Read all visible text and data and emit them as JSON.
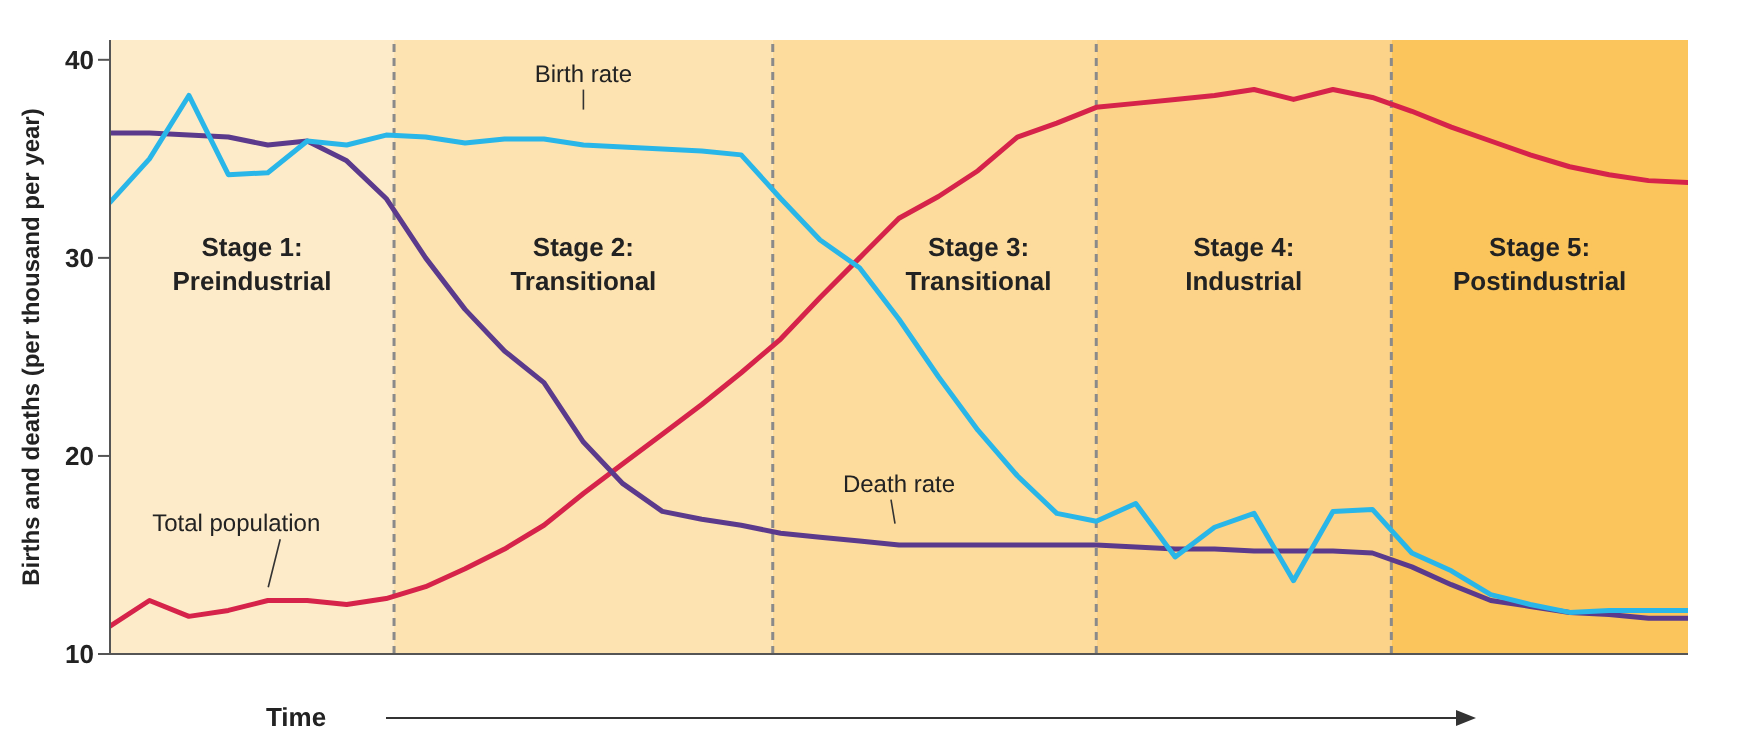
{
  "chart_data": {
    "type": "line",
    "ylabel": "Births and deaths (per thousand per year)",
    "xlabel": "Time",
    "categories": [
      null,
      null,
      null,
      null,
      null,
      null,
      null,
      null,
      null,
      null,
      null,
      null,
      null,
      null,
      null,
      null,
      null,
      null,
      null,
      null,
      null,
      null,
      null,
      null,
      null,
      null,
      null,
      null,
      null,
      null,
      null,
      null,
      null,
      null,
      null,
      null,
      null,
      null,
      null,
      null,
      null
    ],
    "ylim": [
      10,
      41
    ],
    "yticks": [
      10,
      20,
      30,
      40
    ],
    "tick_labels": "y",
    "grid": false,
    "legend": false,
    "marker": "none",
    "line_style": "solid",
    "series": [
      {
        "name": "Birth rate",
        "color": "#29b6e8",
        "values": [
          32.8,
          35.0,
          38.2,
          34.2,
          34.3,
          35.9,
          35.7,
          36.2,
          36.1,
          35.8,
          36.0,
          36.0,
          35.7,
          35.6,
          35.5,
          35.4,
          35.2,
          33.0,
          30.9,
          29.5,
          26.9,
          24.0,
          21.3,
          19.0,
          17.1,
          16.7,
          17.6,
          14.9,
          16.4,
          17.1,
          13.7,
          17.2,
          17.3,
          15.1,
          14.2,
          13.0,
          12.5,
          12.1,
          12.2,
          12.2,
          12.2
        ]
      },
      {
        "name": "Death rate",
        "color": "#5b3a8c",
        "values": [
          36.3,
          36.3,
          36.2,
          36.1,
          35.7,
          35.9,
          34.9,
          33.0,
          30.0,
          27.4,
          25.3,
          23.7,
          20.7,
          18.6,
          17.2,
          16.8,
          16.5,
          16.1,
          15.9,
          15.7,
          15.5,
          15.5,
          15.5,
          15.5,
          15.5,
          15.5,
          15.4,
          15.3,
          15.3,
          15.2,
          15.2,
          15.2,
          15.1,
          14.4,
          13.5,
          12.7,
          12.4,
          12.1,
          12.0,
          11.8,
          11.8
        ]
      },
      {
        "name": "Total population",
        "color": "#d6234a",
        "values": [
          11.4,
          12.7,
          11.9,
          12.2,
          12.7,
          12.7,
          12.5,
          12.8,
          13.4,
          14.3,
          15.3,
          16.5,
          18.1,
          19.6,
          21.1,
          22.6,
          24.2,
          25.9,
          28.0,
          30.0,
          32.0,
          33.1,
          34.4,
          36.1,
          36.8,
          37.6,
          37.8,
          38.0,
          38.2,
          38.5,
          38.0,
          38.5,
          38.1,
          37.4,
          36.6,
          35.9,
          35.2,
          34.6,
          34.2,
          33.9,
          33.8
        ]
      }
    ],
    "annotations": [
      "Stage 1:\nPreindustrial",
      "Stage 2:\nTransitional",
      "Stage 3:\nTransitional",
      "Stage 4:\nIndustrial",
      "Stage 5:\nPostindustrial"
    ]
  }
}
